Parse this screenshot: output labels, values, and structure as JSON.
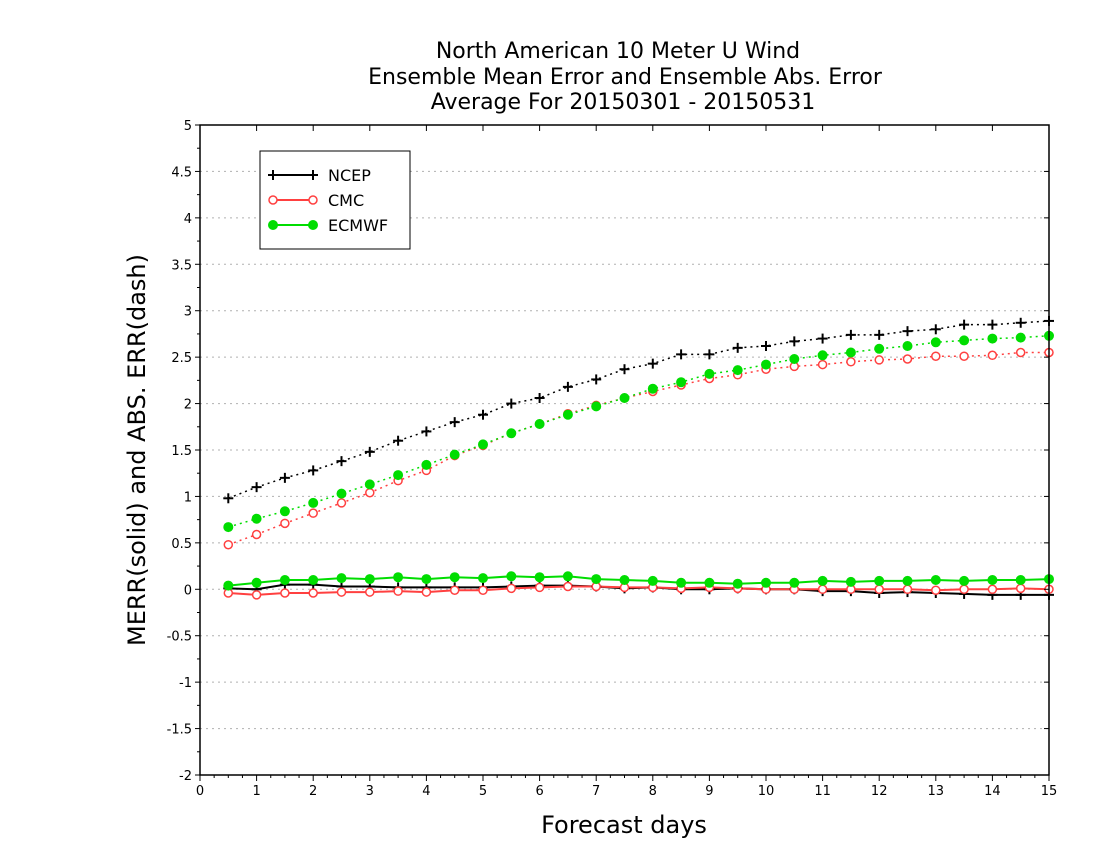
{
  "chart_data": {
    "type": "line",
    "title_lines": [
      "North American 10 Meter U Wind",
      "Ensemble Mean Error and Ensemble Abs. Error",
      "Average For 20150301 - 20150531"
    ],
    "xlabel": "Forecast days",
    "ylabel": "MERR(solid) and ABS. ERR(dash)",
    "xlim": [
      0,
      15
    ],
    "ylim": [
      -2,
      5
    ],
    "x_ticks": [
      "0",
      "1",
      "2",
      "3",
      "4",
      "5",
      "6",
      "7",
      "8",
      "9",
      "10",
      "11",
      "12",
      "13",
      "14",
      "15"
    ],
    "y_ticks": [
      "-2",
      "-1.5",
      "-1",
      "-0.5",
      "0",
      "0.5",
      "1",
      "1.5",
      "2",
      "2.5",
      "3",
      "3.5",
      "4",
      "4.5",
      "5"
    ],
    "grid": true,
    "legend_position": "top-left",
    "x": [
      0.5,
      1,
      1.5,
      2,
      2.5,
      3,
      3.5,
      4,
      4.5,
      5,
      5.5,
      6,
      6.5,
      7,
      7.5,
      8,
      8.5,
      9,
      9.5,
      10,
      10.5,
      11,
      11.5,
      12,
      12.5,
      13,
      13.5,
      14,
      14.5,
      15
    ],
    "series": [
      {
        "name": "NCEP",
        "color": "#000000",
        "marker": "plus",
        "mean_error": [
          0.01,
          0.0,
          0.05,
          0.05,
          0.03,
          0.03,
          0.02,
          0.02,
          0.02,
          0.02,
          0.03,
          0.04,
          0.04,
          0.03,
          0.01,
          0.02,
          0.0,
          0.0,
          0.01,
          0.0,
          0.0,
          -0.02,
          -0.02,
          -0.04,
          -0.03,
          -0.04,
          -0.05,
          -0.06,
          -0.06,
          -0.06
        ],
        "abs_error": [
          0.98,
          1.1,
          1.2,
          1.28,
          1.38,
          1.48,
          1.6,
          1.7,
          1.8,
          1.88,
          2.0,
          2.06,
          2.18,
          2.26,
          2.37,
          2.43,
          2.53,
          2.53,
          2.6,
          2.62,
          2.67,
          2.7,
          2.74,
          2.74,
          2.78,
          2.8,
          2.85,
          2.85,
          2.87,
          2.89
        ]
      },
      {
        "name": "CMC",
        "color": "#ff4040",
        "marker": "open-circle",
        "mean_error": [
          -0.04,
          -0.06,
          -0.04,
          -0.04,
          -0.03,
          -0.03,
          -0.02,
          -0.03,
          -0.01,
          -0.01,
          0.01,
          0.02,
          0.03,
          0.03,
          0.02,
          0.02,
          0.01,
          0.02,
          0.01,
          0.0,
          0.0,
          0.0,
          0.0,
          0.0,
          0.0,
          -0.01,
          0.0,
          0.0,
          0.01,
          0.0
        ],
        "abs_error": [
          0.48,
          0.59,
          0.71,
          0.82,
          0.93,
          1.04,
          1.17,
          1.28,
          1.44,
          1.55,
          1.68,
          1.78,
          1.89,
          1.98,
          2.06,
          2.13,
          2.2,
          2.27,
          2.31,
          2.37,
          2.4,
          2.42,
          2.45,
          2.47,
          2.48,
          2.51,
          2.51,
          2.52,
          2.55,
          2.55
        ]
      },
      {
        "name": "ECMWF",
        "color": "#00dd00",
        "marker": "filled-circle",
        "mean_error": [
          0.04,
          0.07,
          0.1,
          0.1,
          0.12,
          0.11,
          0.13,
          0.11,
          0.13,
          0.12,
          0.14,
          0.13,
          0.14,
          0.11,
          0.1,
          0.09,
          0.07,
          0.07,
          0.06,
          0.07,
          0.07,
          0.09,
          0.08,
          0.09,
          0.09,
          0.1,
          0.09,
          0.1,
          0.1,
          0.11
        ],
        "abs_error": [
          0.67,
          0.76,
          0.84,
          0.93,
          1.03,
          1.13,
          1.23,
          1.34,
          1.45,
          1.56,
          1.68,
          1.78,
          1.88,
          1.97,
          2.06,
          2.16,
          2.23,
          2.32,
          2.36,
          2.42,
          2.48,
          2.52,
          2.55,
          2.59,
          2.62,
          2.66,
          2.68,
          2.7,
          2.71,
          2.73
        ]
      }
    ]
  }
}
